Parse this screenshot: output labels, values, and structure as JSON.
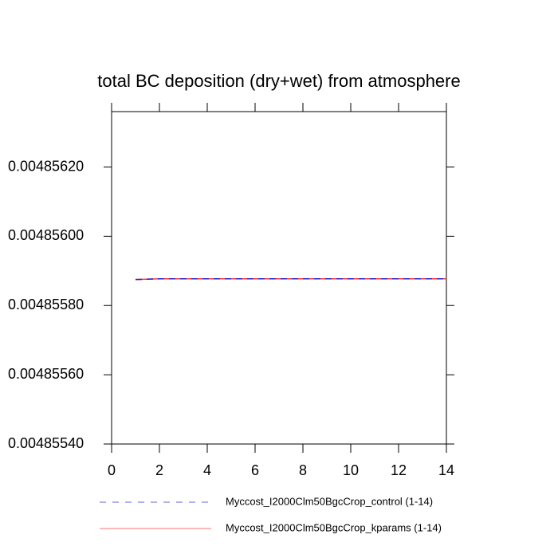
{
  "chart_data": {
    "type": "line",
    "title": "total BC deposition (dry+wet) from atmosphere",
    "x": [
      1,
      2,
      3,
      4,
      5,
      6,
      7,
      8,
      9,
      10,
      11,
      12,
      13,
      14
    ],
    "series": [
      {
        "name": "Myccost_I2000Clm50BgcCrop_control (1-14)",
        "color": "#2222cc",
        "dash": true,
        "values": [
          0.004855875,
          0.004855877,
          0.004855877,
          0.004855877,
          0.004855877,
          0.004855877,
          0.004855877,
          0.004855877,
          0.004855877,
          0.004855877,
          0.004855877,
          0.004855877,
          0.004855877,
          0.004855877
        ]
      },
      {
        "name": "Myccost_I2000Clm50BgcCrop_kparams (1-14)",
        "color": "#ff3333",
        "dash": false,
        "values": [
          0.004855875,
          0.004855877,
          0.004855877,
          0.004855877,
          0.004855877,
          0.004855877,
          0.004855877,
          0.004855877,
          0.004855877,
          0.004855877,
          0.004855877,
          0.004855877,
          0.004855877,
          0.004855877
        ]
      }
    ],
    "xlim": [
      0,
      14
    ],
    "xticks": [
      0,
      2,
      4,
      6,
      8,
      10,
      12,
      14
    ],
    "ylim": [
      0.0048554,
      0.00485636
    ],
    "yticks": [
      {
        "value": 0.0048554,
        "label": "0.00485540"
      },
      {
        "value": 0.0048556,
        "label": "0.00485560"
      },
      {
        "value": 0.0048558,
        "label": "0.00485580"
      },
      {
        "value": 0.004856,
        "label": "0.00485600"
      },
      {
        "value": 0.0048562,
        "label": "0.00485620"
      }
    ]
  }
}
